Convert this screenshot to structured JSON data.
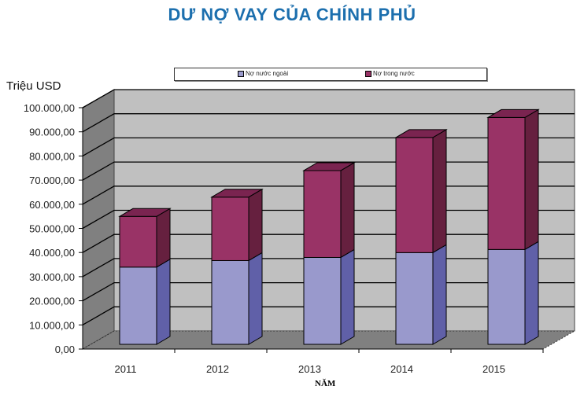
{
  "title": "DƯ NỢ VAY CỦA CHÍNH PHỦ",
  "chart_data": {
    "type": "bar",
    "stacked": true,
    "three_d": true,
    "title": "DƯ NỢ VAY CỦA CHÍNH PHỦ",
    "ylabel": "Triệu USD",
    "xlabel": "NĂM",
    "categories": [
      "2011",
      "2012",
      "2013",
      "2014",
      "2015"
    ],
    "series": [
      {
        "name": "Nợ nước ngoài",
        "values": [
          32000,
          34700,
          36000,
          38000,
          39300
        ],
        "color": "#9999cc"
      },
      {
        "name": "Nợ trong nước",
        "values": [
          21000,
          26300,
          36000,
          47700,
          54700
        ],
        "color": "#993366"
      }
    ],
    "ylim": [
      0,
      100000
    ],
    "yticks": [
      "0,00",
      "10.000,00",
      "20.000,00",
      "30.000,00",
      "40.000,00",
      "50.000,00",
      "60.000,00",
      "70.000,00",
      "80.000,00",
      "90.000,00",
      "100.000,00"
    ],
    "legend": "top",
    "grid": true
  }
}
